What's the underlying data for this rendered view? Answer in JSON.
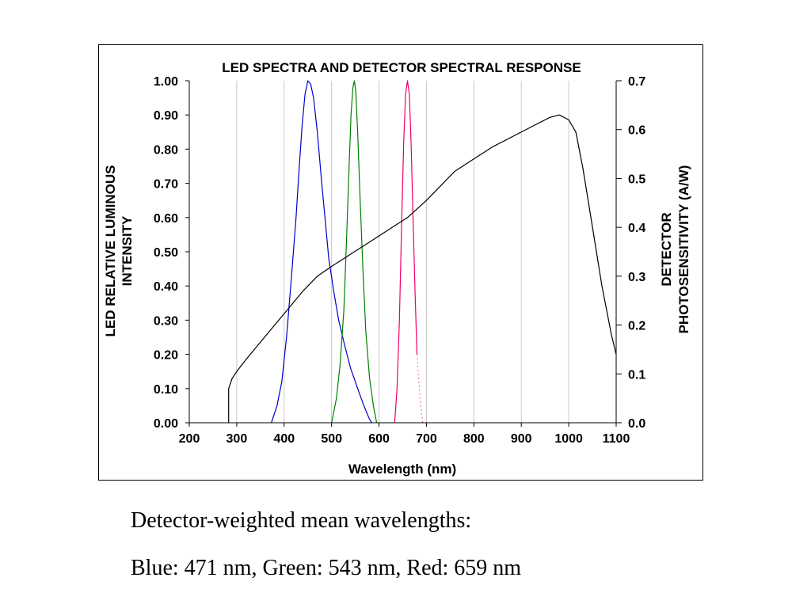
{
  "caption": {
    "line1": "Detector-weighted mean wavelengths:",
    "line2": "Blue: 471 nm, Green: 543 nm, Red: 659 nm"
  },
  "chart_data": {
    "type": "line",
    "title": "LED SPECTRA AND DETECTOR SPECTRAL RESPONSE",
    "xlabel": "Wavelength (nm)",
    "ylabel_left": [
      "LED RELATIVE LUMINOUS",
      "INTENSITY"
    ],
    "ylabel_right": [
      "DETECTOR",
      "PHOTOSENSITIVITY (A/W)"
    ],
    "xlim": [
      200,
      1100
    ],
    "ylim_left": [
      0,
      1
    ],
    "ylim_right": [
      0,
      0.7
    ],
    "x_ticks": [
      200,
      300,
      400,
      500,
      600,
      700,
      800,
      900,
      1000,
      1100
    ],
    "y_left_ticks": [
      "0.00",
      "0.10",
      "0.20",
      "0.30",
      "0.40",
      "0.50",
      "0.60",
      "0.70",
      "0.80",
      "0.90",
      "1.00"
    ],
    "y_right_ticks": [
      "0.0",
      "0.1",
      "0.2",
      "0.3",
      "0.4",
      "0.5",
      "0.6",
      "0.7"
    ],
    "grid": "vertical",
    "series": [
      {
        "color": "#0000cc",
        "axis": "left",
        "points": [
          [
            373,
            0
          ],
          [
            385,
            0.05
          ],
          [
            395,
            0.12
          ],
          [
            405,
            0.25
          ],
          [
            415,
            0.42
          ],
          [
            425,
            0.6
          ],
          [
            432,
            0.75
          ],
          [
            438,
            0.87
          ],
          [
            444,
            0.96
          ],
          [
            450,
            1.0
          ],
          [
            456,
            0.99
          ],
          [
            462,
            0.95
          ],
          [
            470,
            0.85
          ],
          [
            478,
            0.72
          ],
          [
            486,
            0.6
          ],
          [
            494,
            0.48
          ],
          [
            505,
            0.38
          ],
          [
            515,
            0.3
          ],
          [
            527,
            0.23
          ],
          [
            540,
            0.16
          ],
          [
            555,
            0.1
          ],
          [
            568,
            0.05
          ],
          [
            580,
            0.01
          ],
          [
            585,
            0
          ]
        ]
      },
      {
        "color": "#008000",
        "axis": "left",
        "points": [
          [
            500,
            0
          ],
          [
            510,
            0.07
          ],
          [
            518,
            0.17
          ],
          [
            526,
            0.33
          ],
          [
            532,
            0.55
          ],
          [
            537,
            0.75
          ],
          [
            541,
            0.9
          ],
          [
            545,
            0.98
          ],
          [
            548,
            1.0
          ],
          [
            551,
            0.97
          ],
          [
            555,
            0.85
          ],
          [
            560,
            0.66
          ],
          [
            566,
            0.45
          ],
          [
            572,
            0.27
          ],
          [
            580,
            0.13
          ],
          [
            588,
            0.05
          ],
          [
            595,
            0
          ]
        ]
      },
      {
        "color": "#ee0066",
        "axis": "left",
        "points": [
          [
            633,
            0
          ],
          [
            638,
            0.1
          ],
          [
            643,
            0.3
          ],
          [
            648,
            0.6
          ],
          [
            652,
            0.82
          ],
          [
            656,
            0.96
          ],
          [
            660,
            1.0
          ],
          [
            664,
            0.96
          ],
          [
            668,
            0.8
          ],
          [
            672,
            0.58
          ],
          [
            676,
            0.38
          ],
          [
            680,
            0.2
          ]
        ]
      },
      {
        "color": "#ee0066",
        "axis": "left",
        "dash": "1,4",
        "points": [
          [
            680,
            0.2
          ],
          [
            684,
            0.12
          ],
          [
            688,
            0.05
          ],
          [
            692,
            0
          ]
        ]
      },
      {
        "color": "#000000",
        "axis": "right",
        "points": [
          [
            283,
            0
          ],
          [
            283,
            0.07
          ],
          [
            290,
            0.09
          ],
          [
            300,
            0.105
          ],
          [
            320,
            0.13
          ],
          [
            350,
            0.165
          ],
          [
            380,
            0.2
          ],
          [
            410,
            0.235
          ],
          [
            440,
            0.27
          ],
          [
            470,
            0.3
          ],
          [
            500,
            0.32
          ],
          [
            540,
            0.345
          ],
          [
            580,
            0.37
          ],
          [
            620,
            0.395
          ],
          [
            660,
            0.42
          ],
          [
            700,
            0.455
          ],
          [
            730,
            0.485
          ],
          [
            760,
            0.515
          ],
          [
            800,
            0.54
          ],
          [
            840,
            0.565
          ],
          [
            880,
            0.585
          ],
          [
            920,
            0.605
          ],
          [
            960,
            0.625
          ],
          [
            980,
            0.63
          ],
          [
            1000,
            0.62
          ],
          [
            1015,
            0.595
          ],
          [
            1030,
            0.52
          ],
          [
            1050,
            0.4
          ],
          [
            1070,
            0.28
          ],
          [
            1090,
            0.18
          ],
          [
            1100,
            0.14
          ]
        ]
      }
    ]
  }
}
